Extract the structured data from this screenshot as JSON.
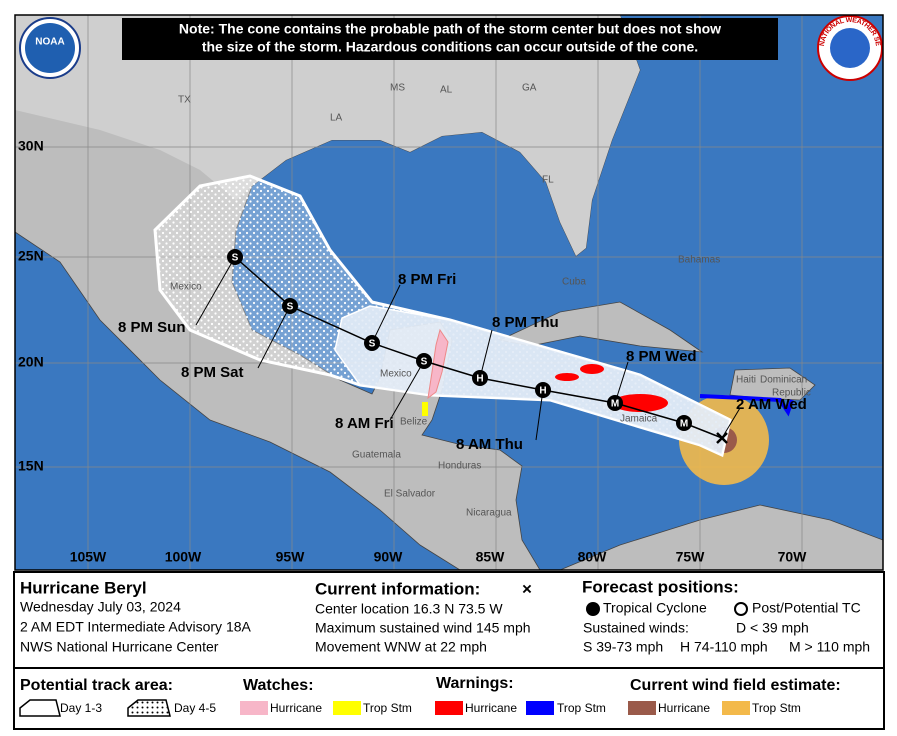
{
  "note": [
    "Note: The cone contains the probable path of the storm center but does not show",
    "the size of the storm. Hazardous conditions can occur outside of the cone."
  ],
  "logos": {
    "noaa": "NOAA",
    "nws": "NATIONAL WEATHER SERVICE"
  },
  "map": {
    "lat_labels": [
      "30N",
      "25N",
      "20N",
      "15N"
    ],
    "lon_labels": [
      "105W",
      "100W",
      "95W",
      "90W",
      "85W",
      "80W",
      "75W",
      "70W"
    ],
    "places": [
      "TX",
      "LA",
      "MS",
      "AL",
      "GA",
      "FL",
      "Mexico",
      "Mexico",
      "Belize",
      "Guatemala",
      "Honduras",
      "El Salvador",
      "Nicaragua",
      "Cuba",
      "Bahamas",
      "Haiti",
      "Dominican",
      "Republic",
      "Jamaica"
    ],
    "forecast_labels": [
      "2 AM Wed",
      "8 PM Wed",
      "8 AM Thu",
      "8 PM Thu",
      "8 AM Fri",
      "8 PM Fri",
      "8 PM Sat",
      "8 PM Sun"
    ],
    "point_letters": [
      "M",
      "M",
      "H",
      "H",
      "S",
      "S",
      "S",
      "S"
    ]
  },
  "info": {
    "storm": {
      "name": "Hurricane Beryl",
      "lines": [
        "Wednesday July 03, 2024",
        "2 AM EDT Intermediate Advisory 18A",
        "NWS National Hurricane Center"
      ]
    },
    "current": {
      "heading": "Current information:",
      "symbol": "×",
      "lines": [
        "Center location 16.3 N 73.5 W",
        "Maximum sustained wind 145 mph",
        "Movement WNW at 22 mph"
      ]
    },
    "forecast": {
      "heading": "Forecast positions:",
      "tropical": "Tropical Cyclone",
      "post": "Post/Potential TC",
      "sustained": "Sustained winds:",
      "d": "D < 39 mph",
      "s": "S 39-73 mph",
      "h": "H 74-110 mph",
      "m": "M > 110 mph"
    }
  },
  "legend": {
    "track_heading": "Potential track area:",
    "day13": "Day 1-3",
    "day45": "Day 4-5",
    "watches": "Watches:",
    "watch_items": [
      "Hurricane",
      "Trop Stm"
    ],
    "warnings": "Warnings:",
    "warning_items": [
      "Hurricane",
      "Trop Stm"
    ],
    "wind": "Current wind field estimate:",
    "wind_items": [
      "Hurricane",
      "Trop Stm"
    ]
  }
}
